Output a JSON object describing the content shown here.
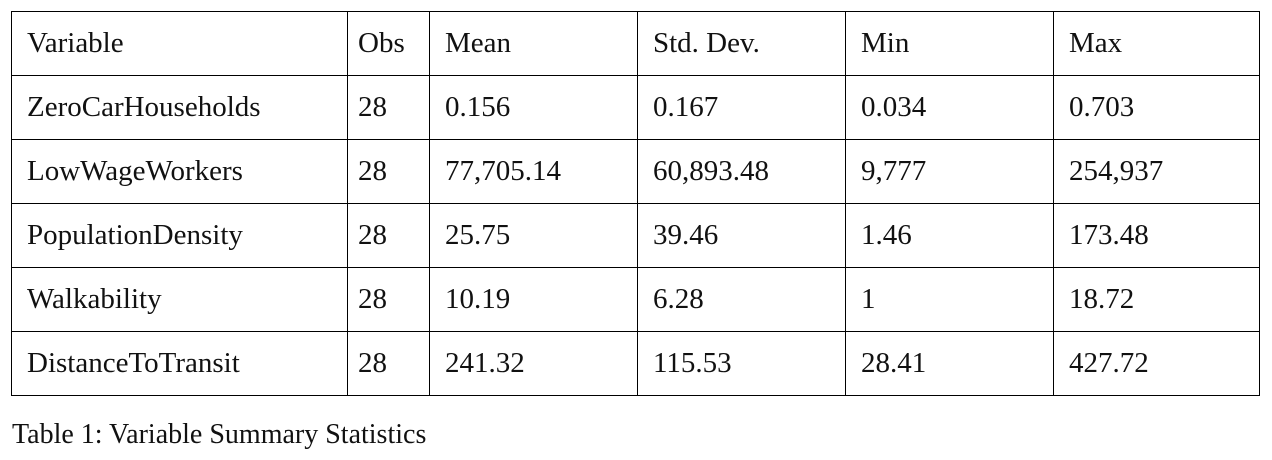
{
  "table": {
    "headers": [
      "Variable",
      "Obs",
      "Mean",
      "Std. Dev.",
      "Min",
      "Max"
    ],
    "rows": [
      [
        "ZeroCarHouseholds",
        "28",
        "0.156",
        "0.167",
        "0.034",
        "0.703"
      ],
      [
        "LowWageWorkers",
        "28",
        "77,705.14",
        "60,893.48",
        "9,777",
        "254,937"
      ],
      [
        "PopulationDensity",
        "28",
        "25.75",
        "39.46",
        "1.46",
        "173.48"
      ],
      [
        "Walkability",
        "28",
        "10.19",
        "6.28",
        "1",
        "18.72"
      ],
      [
        "DistanceToTransit",
        "28",
        "241.32",
        "115.53",
        "28.41",
        "427.72"
      ]
    ]
  },
  "caption": "Table 1: Variable Summary Statistics"
}
